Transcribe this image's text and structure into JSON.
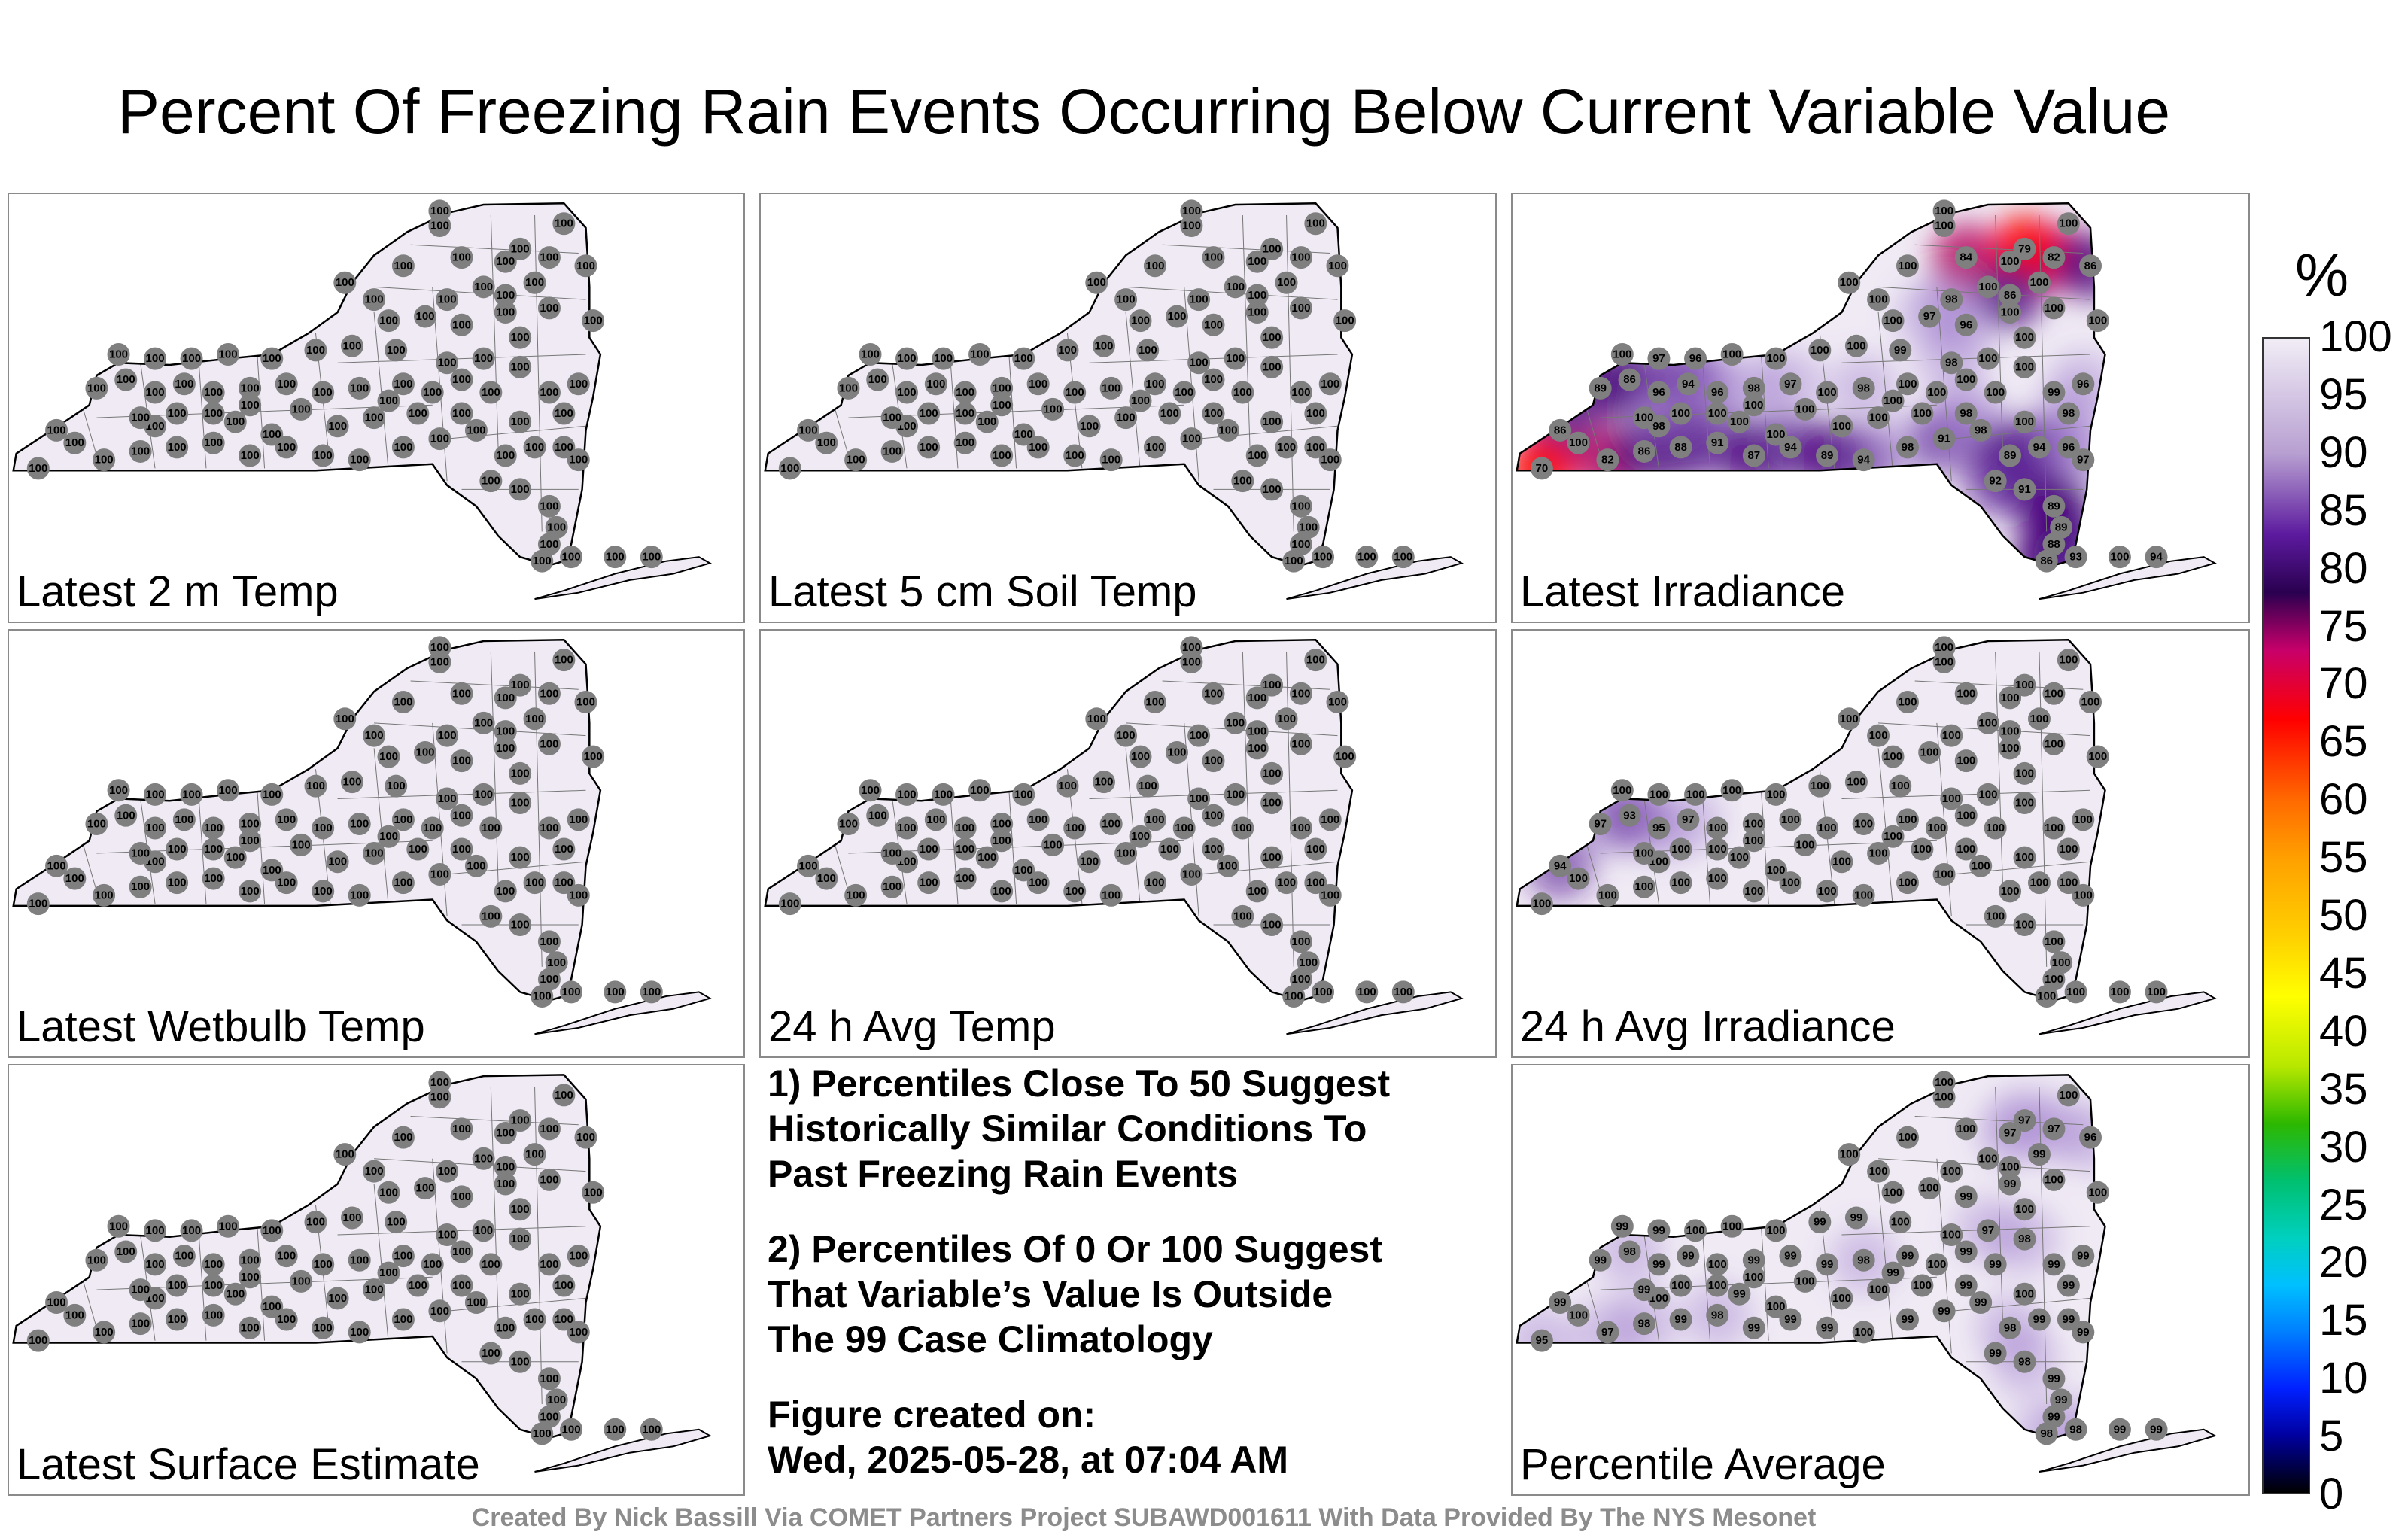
{
  "title": "Percent Of Freezing Rain Events Occurring Below Current Variable Value",
  "panels": [
    {
      "label": "Latest 2 m Temp",
      "mode": "uniform",
      "values": [
        100
      ]
    },
    {
      "label": "Latest 5 cm Soil Temp",
      "mode": "uniform",
      "values": [
        100
      ]
    },
    {
      "label": "Latest Irradiance",
      "mode": "varied",
      "values": [
        100,
        100,
        100,
        100,
        100,
        84,
        100,
        82,
        79,
        86,
        98,
        86,
        100,
        100,
        100,
        100,
        97,
        96,
        100,
        100,
        100,
        100,
        97,
        96,
        100,
        100,
        100,
        100,
        99,
        98,
        100,
        100,
        86,
        89,
        86,
        96,
        94,
        96,
        98,
        97,
        100,
        98,
        100,
        100,
        70,
        82,
        86,
        88,
        91,
        87,
        94,
        89,
        94,
        98,
        91,
        98,
        100,
        98,
        96,
        99,
        100,
        98,
        89,
        94,
        96,
        97,
        92,
        91,
        89,
        89,
        88,
        86,
        93,
        94,
        100,
        98,
        100,
        100,
        100,
        100,
        100,
        100,
        100,
        100,
        100,
        100,
        100,
        100,
        100,
        100
      ]
    },
    {
      "label": "Latest Wetbulb Temp",
      "mode": "uniform",
      "values": [
        100
      ]
    },
    {
      "label": "24 h Avg Temp",
      "mode": "uniform",
      "values": [
        100
      ]
    },
    {
      "label": "24 h Avg Irradiance",
      "mode": "varied",
      "values": [
        100,
        100,
        100,
        100,
        100,
        100,
        100,
        100,
        100,
        100,
        100,
        100,
        100,
        100,
        100,
        100,
        100,
        100,
        100,
        100,
        100,
        100,
        100,
        100,
        100,
        100,
        100,
        100,
        100,
        100,
        100,
        100,
        94,
        97,
        93,
        95,
        97,
        100,
        100,
        100,
        100,
        100,
        100,
        100,
        100,
        100,
        100,
        100,
        100,
        100,
        100,
        100,
        100,
        100,
        100,
        100,
        100,
        100,
        100,
        100,
        100,
        100,
        100,
        100,
        100,
        100,
        100,
        100,
        100,
        100,
        100,
        100,
        100,
        100,
        100,
        100,
        100,
        100,
        100,
        100,
        100,
        100,
        100,
        100,
        100,
        100,
        100,
        100,
        100,
        100
      ]
    },
    {
      "label": "Latest Surface Estimate",
      "mode": "uniform",
      "values": [
        100
      ]
    },
    {
      "label": "Percentile Average",
      "mode": "varied",
      "values": [
        100,
        100,
        100,
        100,
        100,
        100,
        97,
        97,
        97,
        96,
        100,
        100,
        100,
        99,
        100,
        100,
        100,
        99,
        99,
        100,
        100,
        99,
        99,
        100,
        100,
        100,
        99,
        99,
        100,
        100,
        97,
        98,
        99,
        99,
        98,
        99,
        99,
        100,
        99,
        99,
        99,
        98,
        99,
        100,
        95,
        97,
        98,
        99,
        98,
        99,
        99,
        99,
        100,
        99,
        99,
        99,
        100,
        99,
        99,
        99,
        99,
        99,
        98,
        99,
        99,
        99,
        99,
        98,
        99,
        99,
        99,
        98,
        98,
        99,
        99,
        100,
        99,
        100,
        100,
        100,
        100,
        99,
        100,
        100,
        99,
        100,
        100,
        100,
        99,
        100
      ]
    }
  ],
  "notes": [
    "1) Percentiles Close To 50 Suggest\nHistorically Similar Conditions To\nPast Freezing Rain Events",
    "2) Percentiles Of 0 Or 100 Suggest\nThat Variable’s Value Is Outside\nThe 99 Case Climatology",
    "Figure created on:\nWed, 2025-05-28, at 07:04 AM"
  ],
  "colorbar": {
    "unit": "%",
    "ticks": [
      "100",
      "95",
      "90",
      "85",
      "80",
      "75",
      "70",
      "65",
      "60",
      "55",
      "50",
      "45",
      "40",
      "35",
      "30",
      "25",
      "20",
      "15",
      "10",
      "5",
      "0"
    ],
    "range": [
      0,
      100
    ]
  },
  "colors": {
    "map_fill": "#efeaf4",
    "station_marker": "#7f7f7f",
    "outline": "#000000"
  },
  "credit": "Created By Nick Bassill Via COMET Partners Project SUBAWD001611 With Data Provided By The NYS Mesonet"
}
